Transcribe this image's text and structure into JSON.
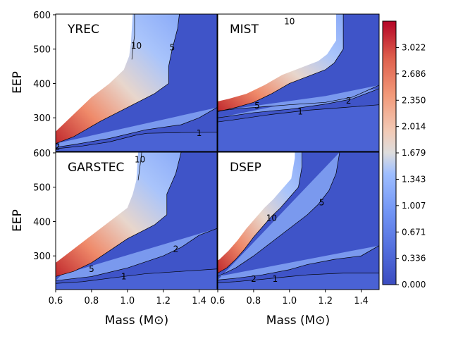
{
  "chart_data": {
    "type": "heatmap",
    "shared_axes": {
      "xlabel": "Mass (M⊙)",
      "ylabel": "EEP",
      "xlim": [
        0.6,
        1.5
      ],
      "ylim": [
        202,
        602
      ],
      "x_ticks": [
        0.6,
        0.8,
        1.0,
        1.2,
        1.4
      ],
      "x_tick_labels": [
        "0.6",
        "0.8",
        "1.0",
        "1.2",
        "1.4"
      ],
      "y_ticks": [
        300,
        400,
        500,
        600
      ],
      "y_tick_labels": [
        "300",
        "400",
        "500",
        "600"
      ]
    },
    "colorbar": {
      "min": 0.0,
      "max": 3.358,
      "ticks": [
        0.0,
        0.336,
        0.671,
        1.007,
        1.343,
        1.679,
        2.014,
        2.35,
        2.686,
        3.022
      ],
      "tick_labels": [
        "0.000",
        "0.336",
        "0.671",
        "1.007",
        "1.343",
        "1.679",
        "2.014",
        "2.350",
        "2.686",
        "3.022"
      ],
      "colormap": "coolwarm",
      "colors": [
        "#3b4cc0",
        "#6788ee",
        "#9abbff",
        "#c9d7f0",
        "#edd1c2",
        "#f7a889",
        "#e26952",
        "#b40426"
      ]
    },
    "panels": [
      {
        "name": "YREC",
        "contour_levels": [
          1,
          2,
          5,
          10
        ],
        "contour_labels": [
          {
            "text": "10",
            "x": 1.05,
            "y": 510
          },
          {
            "text": "5",
            "x": 1.25,
            "y": 505
          },
          {
            "text": "1",
            "x": 1.4,
            "y": 255
          },
          {
            "text": "2",
            "x": 0.61,
            "y": 215
          }
        ],
        "lines": [
          {
            "level": 10,
            "points": [
              [
                1.04,
                602
              ],
              [
                1.04,
                540
              ],
              [
                1.03,
                500
              ],
              [
                1.025,
                470
              ]
            ]
          },
          {
            "level": 5,
            "points": [
              [
                1.29,
                602
              ],
              [
                1.28,
                560
              ],
              [
                1.25,
                500
              ],
              [
                1.23,
                450
              ],
              [
                1.23,
                400
              ],
              [
                1.15,
                370
              ],
              [
                1.0,
                330
              ],
              [
                0.85,
                290
              ],
              [
                0.7,
                245
              ],
              [
                0.6,
                225
              ]
            ]
          },
          {
            "level": 2,
            "points": [
              [
                1.5,
                330
              ],
              [
                1.4,
                300
              ],
              [
                1.3,
                280
              ],
              [
                1.1,
                265
              ],
              [
                0.9,
                240
              ],
              [
                0.7,
                222
              ],
              [
                0.6,
                214
              ]
            ]
          },
          {
            "level": 1,
            "points": [
              [
                1.5,
                258
              ],
              [
                1.3,
                257
              ],
              [
                1.11,
                255
              ],
              [
                1.05,
                250
              ],
              [
                0.9,
                230
              ],
              [
                0.75,
                218
              ],
              [
                0.6,
                210
              ]
            ]
          }
        ]
      },
      {
        "name": "MIST",
        "contour_levels": [
          1,
          2,
          5,
          10
        ],
        "contour_labels": [
          {
            "text": "10",
            "x": 1.0,
            "y": 580
          },
          {
            "text": "5",
            "x": 0.82,
            "y": 335
          },
          {
            "text": "2",
            "x": 1.33,
            "y": 350
          },
          {
            "text": "1",
            "x": 1.06,
            "y": 318
          }
        ],
        "lines": [
          {
            "level": 10,
            "points": [
              [
                1.3,
                602
              ],
              [
                1.3,
                500
              ],
              [
                1.25,
                460
              ],
              [
                1.2,
                440
              ],
              [
                1.1,
                420
              ],
              [
                1.0,
                400
              ],
              [
                0.9,
                370
              ],
              [
                0.8,
                345
              ],
              [
                0.7,
                330
              ],
              [
                0.6,
                318
              ]
            ]
          },
          {
            "level": 5,
            "points": [
              [
                1.5,
                395
              ],
              [
                1.35,
                360
              ],
              [
                1.2,
                345
              ],
              [
                1.0,
                338
              ],
              [
                0.85,
                332
              ],
              [
                0.7,
                326
              ],
              [
                0.6,
                320
              ]
            ]
          },
          {
            "level": 2,
            "points": [
              [
                1.5,
                385
              ],
              [
                1.35,
                355
              ],
              [
                1.2,
                340
              ],
              [
                1.0,
                325
              ],
              [
                0.8,
                315
              ],
              [
                0.6,
                300
              ]
            ]
          },
          {
            "level": 1,
            "points": [
              [
                1.5,
                338
              ],
              [
                1.3,
                330
              ],
              [
                1.1,
                322
              ],
              [
                0.9,
                310
              ],
              [
                0.7,
                295
              ],
              [
                0.6,
                288
              ]
            ]
          }
        ]
      },
      {
        "name": "GARSTEC",
        "contour_levels": [
          1,
          2,
          5,
          10
        ],
        "contour_labels": [
          {
            "text": "10",
            "x": 1.07,
            "y": 580
          },
          {
            "text": "5",
            "x": 0.8,
            "y": 262
          },
          {
            "text": "2",
            "x": 1.27,
            "y": 320
          },
          {
            "text": "1",
            "x": 0.98,
            "y": 240
          }
        ],
        "lines": [
          {
            "level": 10,
            "points": [
              [
                1.08,
                602
              ],
              [
                1.07,
                560
              ],
              [
                1.06,
                520
              ]
            ]
          },
          {
            "level": 5,
            "points": [
              [
                1.3,
                602
              ],
              [
                1.27,
                540
              ],
              [
                1.22,
                480
              ],
              [
                1.22,
                420
              ],
              [
                1.15,
                390
              ],
              [
                1.0,
                350
              ],
              [
                0.9,
                315
              ],
              [
                0.8,
                280
              ],
              [
                0.7,
                255
              ],
              [
                0.6,
                240
              ]
            ]
          },
          {
            "level": 2,
            "points": [
              [
                1.5,
                380
              ],
              [
                1.4,
                360
              ],
              [
                1.3,
                325
              ],
              [
                1.2,
                300
              ],
              [
                1.0,
                265
              ],
              [
                0.8,
                240
              ],
              [
                0.6,
                228
              ]
            ]
          },
          {
            "level": 1,
            "points": [
              [
                1.5,
                262
              ],
              [
                1.3,
                255
              ],
              [
                1.1,
                248
              ],
              [
                0.9,
                235
              ],
              [
                0.75,
                225
              ],
              [
                0.6,
                220
              ]
            ]
          }
        ]
      },
      {
        "name": "DSEP",
        "contour_levels": [
          1,
          2,
          5,
          10
        ],
        "contour_labels": [
          {
            "text": "10",
            "x": 0.9,
            "y": 410
          },
          {
            "text": "5",
            "x": 1.18,
            "y": 455
          },
          {
            "text": "2",
            "x": 0.8,
            "y": 233
          },
          {
            "text": "1",
            "x": 0.92,
            "y": 233
          }
        ],
        "lines": [
          {
            "level": 10,
            "points": [
              [
                1.07,
                602
              ],
              [
                1.07,
                560
              ],
              [
                1.05,
                500
              ],
              [
                1.0,
                470
              ],
              [
                0.95,
                440
              ],
              [
                0.9,
                415
              ],
              [
                0.85,
                385
              ],
              [
                0.8,
                355
              ],
              [
                0.75,
                320
              ],
              [
                0.7,
                290
              ],
              [
                0.65,
                265
              ],
              [
                0.6,
                250
              ]
            ]
          },
          {
            "level": 5,
            "points": [
              [
                1.28,
                602
              ],
              [
                1.26,
                540
              ],
              [
                1.22,
                490
              ],
              [
                1.16,
                450
              ],
              [
                1.1,
                420
              ],
              [
                1.0,
                380
              ],
              [
                0.9,
                340
              ],
              [
                0.8,
                300
              ],
              [
                0.7,
                265
              ],
              [
                0.6,
                240
              ]
            ]
          },
          {
            "level": 2,
            "points": [
              [
                1.5,
                330
              ],
              [
                1.4,
                300
              ],
              [
                1.25,
                290
              ],
              [
                1.1,
                275
              ],
              [
                1.0,
                260
              ],
              [
                0.85,
                245
              ],
              [
                0.7,
                235
              ],
              [
                0.6,
                230
              ]
            ]
          },
          {
            "level": 1,
            "points": [
              [
                1.5,
                250
              ],
              [
                1.3,
                250
              ],
              [
                1.1,
                245
              ],
              [
                1.0,
                240
              ],
              [
                0.85,
                232
              ],
              [
                0.7,
                225
              ],
              [
                0.6,
                222
              ]
            ]
          }
        ]
      }
    ]
  }
}
